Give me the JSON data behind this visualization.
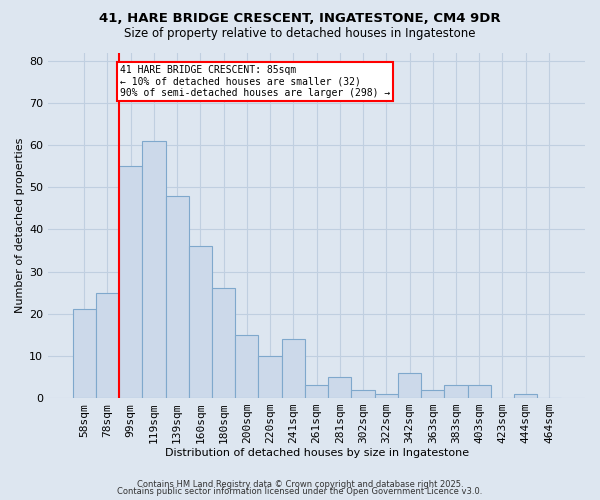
{
  "title_line1": "41, HARE BRIDGE CRESCENT, INGATESTONE, CM4 9DR",
  "title_line2": "Size of property relative to detached houses in Ingatestone",
  "xlabel": "Distribution of detached houses by size in Ingatestone",
  "ylabel": "Number of detached properties",
  "bar_labels": [
    "58sqm",
    "78sqm",
    "99sqm",
    "119sqm",
    "139sqm",
    "160sqm",
    "180sqm",
    "200sqm",
    "220sqm",
    "241sqm",
    "261sqm",
    "281sqm",
    "302sqm",
    "322sqm",
    "342sqm",
    "363sqm",
    "383sqm",
    "403sqm",
    "423sqm",
    "444sqm",
    "464sqm"
  ],
  "bar_values": [
    21,
    25,
    55,
    61,
    48,
    36,
    26,
    15,
    10,
    14,
    3,
    5,
    2,
    1,
    6,
    2,
    3,
    3,
    0,
    1,
    0
  ],
  "bar_color": "#ccd9ea",
  "bar_edgecolor": "#7fa8cc",
  "grid_color": "#c0cfe0",
  "background_color": "#dde6f0",
  "red_line_x": 1.5,
  "annotation_text": "41 HARE BRIDGE CRESCENT: 85sqm\n← 10% of detached houses are smaller (32)\n90% of semi-detached houses are larger (298) →",
  "annotation_box_color": "white",
  "annotation_border_color": "red",
  "footer_line1": "Contains HM Land Registry data © Crown copyright and database right 2025.",
  "footer_line2": "Contains public sector information licensed under the Open Government Licence v3.0.",
  "ylim": [
    0,
    82
  ],
  "yticks": [
    0,
    10,
    20,
    30,
    40,
    50,
    60,
    70,
    80
  ]
}
